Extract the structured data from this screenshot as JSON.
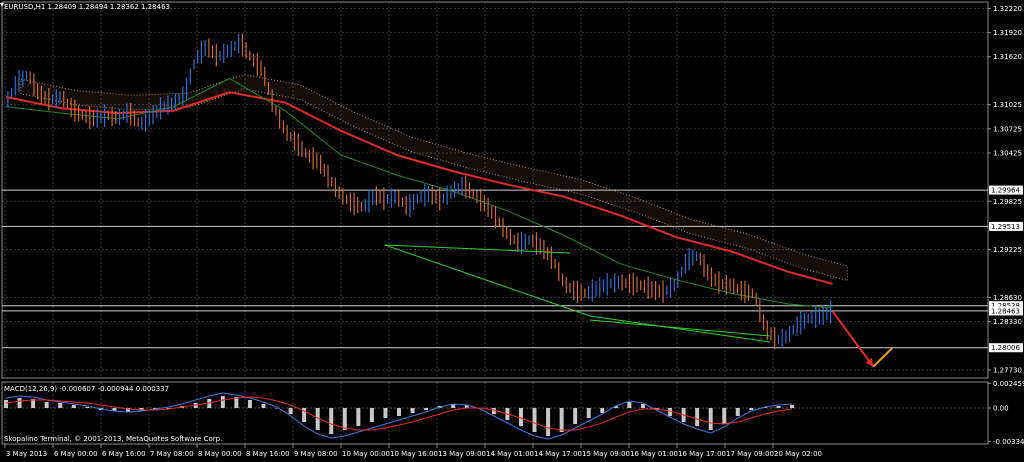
{
  "chart_header": {
    "symbol_line": "EURUSD,H1  1.28409 1.28494 1.28362 1.28463"
  },
  "chart_data": [
    {
      "type": "line",
      "name": "price-panel",
      "title": "EURUSD,H1  1.28409 1.28494 1.28362 1.28463",
      "ohlc": {
        "open": 1.28409,
        "high": 1.28494,
        "low": 1.28362,
        "close": 1.28463
      },
      "y_range": [
        1.2763,
        1.323
      ],
      "y_tick_labels": [
        1.3222,
        1.3192,
        1.3162,
        1.31025,
        1.30725,
        1.30425,
        1.29825,
        1.29225,
        1.2863,
        1.2833,
        1.2773
      ],
      "y_tick_label_text": [
        "1.32220",
        "1.31920",
        "1.31620",
        "1.31025",
        "1.30725",
        "1.30425",
        "1.29825",
        "1.29225",
        "1.28630",
        "1.28330",
        "1.27730"
      ],
      "horizontal_levels": [
        {
          "value": 1.29964,
          "label": "1.29964"
        },
        {
          "value": 1.29513,
          "label": "1.29513"
        },
        {
          "value": 1.28528,
          "label": "1.28528"
        },
        {
          "value": 1.28463,
          "label": "1.28463"
        },
        {
          "value": 1.28006,
          "label": "1.28006"
        }
      ],
      "x_tick_labels": [
        "3 May 2013",
        "6 May 00:00",
        "6 May 16:00",
        "7 May 08:00",
        "8 May 00:00",
        "8 May 16:00",
        "9 May 08:00",
        "10 May 00:00",
        "10 May 16:00",
        "13 May 09:00",
        "14 May 01:00",
        "14 May 17:00",
        "15 May 09:00",
        "16 May 01:00",
        "16 May 17:00",
        "17 May 09:00",
        "20 May 02:00"
      ],
      "series": [
        {
          "kind": "price",
          "color": "#2f6fd8",
          "down_color": "#d2692e",
          "points": [
            [
              0,
              1.3105
            ],
            [
              3,
              1.313
            ],
            [
              6,
              1.314
            ],
            [
              9,
              1.3115
            ],
            [
              12,
              1.3108
            ],
            [
              15,
              1.3112
            ],
            [
              18,
              1.3096
            ],
            [
              21,
              1.3088
            ],
            [
              24,
              1.3085
            ],
            [
              27,
              1.309
            ],
            [
              30,
              1.3086
            ],
            [
              33,
              1.3093
            ],
            [
              36,
              1.3078
            ],
            [
              39,
              1.3088
            ],
            [
              42,
              1.31
            ],
            [
              45,
              1.3104
            ],
            [
              48,
              1.3115
            ],
            [
              51,
              1.316
            ],
            [
              54,
              1.3175
            ],
            [
              57,
              1.3162
            ],
            [
              60,
              1.317
            ],
            [
              63,
              1.318
            ],
            [
              66,
              1.316
            ],
            [
              69,
              1.3145
            ],
            [
              72,
              1.31
            ],
            [
              75,
              1.307
            ],
            [
              78,
              1.3055
            ],
            [
              81,
              1.304
            ],
            [
              84,
              1.3032
            ],
            [
              87,
              1.301
            ],
            [
              90,
              1.299
            ],
            [
              93,
              1.298
            ],
            [
              96,
              1.2975
            ],
            [
              99,
              1.299
            ],
            [
              102,
              1.2985
            ],
            [
              105,
              1.2988
            ],
            [
              108,
              1.2975
            ],
            [
              111,
              1.2988
            ],
            [
              114,
              1.2992
            ],
            [
              117,
              1.2984
            ],
            [
              120,
              1.2996
            ],
            [
              123,
              1.3002
            ],
            [
              126,
              1.299
            ],
            [
              129,
              1.2978
            ],
            [
              132,
              1.296
            ],
            [
              135,
              1.294
            ],
            [
              138,
              1.293
            ],
            [
              141,
              1.2935
            ],
            [
              144,
              1.2925
            ],
            [
              147,
              1.291
            ],
            [
              150,
              1.288
            ],
            [
              153,
              1.287
            ],
            [
              156,
              1.2868
            ],
            [
              159,
              1.2875
            ],
            [
              162,
              1.288
            ],
            [
              165,
              1.2882
            ],
            [
              168,
              1.288
            ],
            [
              171,
              1.2878
            ],
            [
              174,
              1.2872
            ],
            [
              177,
              1.287
            ],
            [
              180,
              1.288
            ],
            [
              183,
              1.291
            ],
            [
              186,
              1.2915
            ],
            [
              189,
              1.289
            ],
            [
              192,
              1.288
            ],
            [
              195,
              1.2878
            ],
            [
              198,
              1.287
            ],
            [
              201,
              1.2868
            ],
            [
              204,
              1.2825
            ],
            [
              207,
              1.281
            ],
            [
              210,
              1.2815
            ],
            [
              213,
              1.283
            ],
            [
              216,
              1.2838
            ],
            [
              219,
              1.284
            ],
            [
              222,
              1.2846
            ]
          ]
        },
        {
          "kind": "ma",
          "color": "#e02b2b",
          "points": [
            [
              0,
              1.3112
            ],
            [
              15,
              1.3098
            ],
            [
              30,
              1.3092
            ],
            [
              45,
              1.3095
            ],
            [
              60,
              1.3118
            ],
            [
              75,
              1.3105
            ],
            [
              90,
              1.307
            ],
            [
              105,
              1.304
            ],
            [
              120,
              1.302
            ],
            [
              135,
              1.3003
            ],
            [
              150,
              1.2988
            ],
            [
              165,
              1.2965
            ],
            [
              180,
              1.2938
            ],
            [
              195,
              1.292
            ],
            [
              210,
              1.2895
            ],
            [
              222,
              1.288
            ]
          ]
        },
        {
          "kind": "ma",
          "color": "#1f8a1f",
          "points": [
            [
              0,
              1.31
            ],
            [
              15,
              1.3092
            ],
            [
              30,
              1.3085
            ],
            [
              45,
              1.31
            ],
            [
              60,
              1.3135
            ],
            [
              75,
              1.3095
            ],
            [
              90,
              1.304
            ],
            [
              105,
              1.3015
            ],
            [
              120,
              1.2995
            ],
            [
              135,
              1.297
            ],
            [
              150,
              1.294
            ],
            [
              165,
              1.2905
            ],
            [
              180,
              1.2885
            ],
            [
              195,
              1.2868
            ],
            [
              210,
              1.2855
            ],
            [
              222,
              1.285
            ]
          ]
        }
      ],
      "forecast_arrows": [
        {
          "color": "#e02b2b",
          "from": [
            222,
            1.2846
          ],
          "to": [
            233,
            1.2777
          ]
        },
        {
          "color": "#f0a020",
          "from": [
            233,
            1.2777
          ],
          "to": [
            238,
            1.28
          ]
        }
      ]
    },
    {
      "type": "bar",
      "name": "macd-panel",
      "title": "MACD(12,26,9) -0.000607 -0.000944 0.000337",
      "params": [
        12,
        26,
        9
      ],
      "values": {
        "macd": -0.000607,
        "signal": -0.000944,
        "histogram": 0.000337
      },
      "y_range": [
        -0.0036,
        0.0026
      ],
      "y_tick_label_text": [
        "0.002459",
        "0.00",
        "-0.003343"
      ],
      "y_tick_values": [
        0.002459,
        0.0,
        -0.003343
      ],
      "histogram": [
        0.0008,
        0.001,
        0.0009,
        0.0006,
        0.0005,
        0.0003,
        0.0001,
        -0.0002,
        -0.0003,
        -0.0004,
        -0.0003,
        -0.0002,
        -0.0001,
        0.0002,
        0.0005,
        0.0009,
        0.0012,
        0.0011,
        0.0008,
        0.0004,
        0.0,
        -0.0006,
        -0.0014,
        -0.0022,
        -0.0026,
        -0.0022,
        -0.0018,
        -0.0014,
        -0.001,
        -0.0008,
        -0.0005,
        -0.0002,
        0.0002,
        0.0004,
        0.0003,
        0.0,
        -0.0006,
        -0.0012,
        -0.0018,
        -0.0024,
        -0.0028,
        -0.0024,
        -0.0016,
        -0.001,
        -0.0005,
        0.0002,
        0.0006,
        0.0004,
        -0.0002,
        -0.0008,
        -0.0014,
        -0.0018,
        -0.0022,
        -0.0016,
        -0.0008,
        -0.0002,
        0.0001,
        0.0002,
        0.0003
      ],
      "series": [
        {
          "name": "",
          "color": "#3a7be0",
          "values": [
            0.001,
            0.0012,
            0.0011,
            0.0008,
            0.0006,
            0.0004,
            0.0002,
            -0.0001,
            -0.0003,
            -0.0004,
            -0.0003,
            -0.0001,
            0.0001,
            0.0004,
            0.0008,
            0.0012,
            0.0015,
            0.0013,
            0.001,
            0.0006,
            0.0001,
            -0.0008,
            -0.0018,
            -0.0026,
            -0.003,
            -0.0028,
            -0.0024,
            -0.002,
            -0.0016,
            -0.0012,
            -0.0008,
            -0.0004,
            0.0001,
            0.0004,
            0.0003,
            -0.0001,
            -0.0008,
            -0.0015,
            -0.0022,
            -0.0028,
            -0.0031,
            -0.0027,
            -0.002,
            -0.0013,
            -0.0006,
            0.0002,
            0.0007,
            0.0005,
            -0.0002,
            -0.0009,
            -0.0016,
            -0.0021,
            -0.0025,
            -0.0019,
            -0.001,
            -0.0003,
            0.0001,
            0.0003,
            0.0004
          ]
        },
        {
          "name": "",
          "color": "#e02b2b",
          "values": [
            0.0005,
            0.0007,
            0.0008,
            0.0008,
            0.0007,
            0.0006,
            0.0005,
            0.0003,
            0.0001,
            -0.0001,
            -0.0002,
            -0.0002,
            -0.0001,
            0.0001,
            0.0003,
            0.0005,
            0.0008,
            0.001,
            0.0011,
            0.001,
            0.0007,
            0.0003,
            -0.0003,
            -0.001,
            -0.0016,
            -0.002,
            -0.0022,
            -0.0022,
            -0.002,
            -0.0017,
            -0.0014,
            -0.001,
            -0.0006,
            -0.0002,
            0.0,
            0.0,
            -0.0002,
            -0.0006,
            -0.001,
            -0.0015,
            -0.002,
            -0.0022,
            -0.0022,
            -0.0019,
            -0.0015,
            -0.0009,
            -0.0004,
            -0.0001,
            -0.0001,
            -0.0003,
            -0.0007,
            -0.0011,
            -0.0015,
            -0.0016,
            -0.0014,
            -0.001,
            -0.0006,
            -0.0003,
            -0.0001
          ]
        }
      ]
    }
  ],
  "footer": {
    "copyright": "Skopalino Terminal, © 2001-2013, MetaQuotes Software Corp."
  }
}
